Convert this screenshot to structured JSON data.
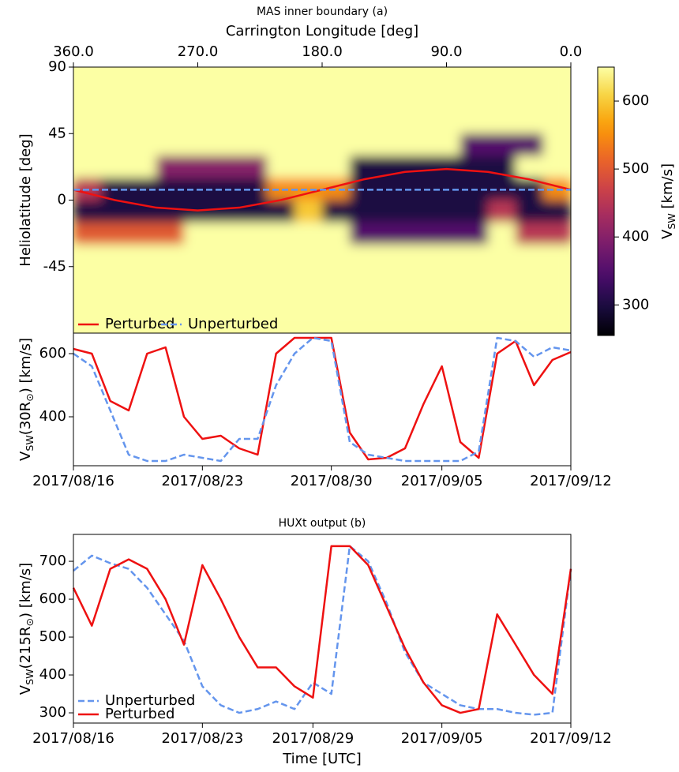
{
  "chart_data": [
    {
      "type": "heatmap",
      "title": "MAS inner boundary (a)",
      "xlabel": "Carrington Longitude [deg]",
      "xaxis": "top",
      "ylabel": "Heliolatitude [deg]",
      "xlim": [
        360,
        0
      ],
      "xticks": [
        {
          "value": 360,
          "label": "360.0"
        },
        {
          "value": 270,
          "label": "270.0"
        },
        {
          "value": 180,
          "label": "180.0"
        },
        {
          "value": 90,
          "label": "90.0"
        },
        {
          "value": 0,
          "label": "0.0"
        }
      ],
      "ylim": [
        -90,
        90
      ],
      "yticks": [
        -45,
        0,
        45,
        90
      ],
      "colormap": "inferno",
      "zlim": [
        255,
        650
      ],
      "zticks": [
        300,
        400,
        500,
        600
      ],
      "zlabel": [
        "V",
        "SW",
        " [km/s]"
      ],
      "z": [
        [
          650,
          650,
          650,
          650,
          650,
          650,
          650,
          650,
          650,
          650,
          650,
          650,
          650,
          650,
          650,
          650,
          650,
          650
        ],
        [
          650,
          650,
          650,
          650,
          650,
          650,
          650,
          650,
          650,
          650,
          650,
          650,
          650,
          650,
          650,
          650,
          650,
          650
        ],
        [
          650,
          650,
          650,
          650,
          650,
          650,
          650,
          650,
          650,
          650,
          650,
          650,
          650,
          650,
          650,
          650,
          650,
          650
        ],
        [
          650,
          650,
          650,
          650,
          650,
          650,
          650,
          650,
          650,
          650,
          650,
          650,
          650,
          650,
          350,
          350,
          350,
          650
        ],
        [
          650,
          650,
          650,
          400,
          400,
          400,
          400,
          650,
          650,
          650,
          300,
          300,
          300,
          300,
          300,
          300,
          650,
          650
        ],
        [
          450,
          300,
          300,
          300,
          300,
          300,
          300,
          550,
          550,
          550,
          300,
          300,
          300,
          300,
          300,
          300,
          300,
          550
        ],
        [
          300,
          300,
          300,
          300,
          300,
          300,
          300,
          300,
          600,
          300,
          300,
          300,
          300,
          300,
          300,
          450,
          300,
          300
        ],
        [
          500,
          500,
          500,
          500,
          650,
          650,
          650,
          650,
          650,
          650,
          350,
          350,
          350,
          350,
          350,
          650,
          450,
          450
        ],
        [
          650,
          650,
          650,
          650,
          650,
          650,
          650,
          650,
          650,
          650,
          650,
          650,
          650,
          650,
          650,
          650,
          650,
          650
        ],
        [
          650,
          650,
          650,
          650,
          650,
          650,
          650,
          650,
          650,
          650,
          650,
          650,
          650,
          650,
          650,
          650,
          650,
          650
        ],
        [
          650,
          650,
          650,
          650,
          650,
          650,
          650,
          650,
          650,
          650,
          650,
          650,
          650,
          650,
          650,
          650,
          650,
          650
        ],
        [
          650,
          650,
          650,
          650,
          650,
          650,
          650,
          650,
          650,
          650,
          650,
          650,
          650,
          650,
          650,
          650,
          650,
          650
        ]
      ],
      "legend": "lower left",
      "legend_ncol": 2,
      "series": [
        {
          "name": "Perturbed",
          "color": "#ee1111",
          "linestyle": "solid",
          "x": [
            360,
            330,
            300,
            270,
            240,
            210,
            180,
            150,
            120,
            90,
            60,
            30,
            0
          ],
          "values": [
            7,
            0,
            -5.1,
            -7,
            -5.1,
            0,
            7,
            14,
            19.1,
            21,
            19.1,
            14,
            7
          ]
        },
        {
          "name": "Unperturbed",
          "color": "#6495ed",
          "linestyle": "dashed",
          "x": [
            360,
            0
          ],
          "values": [
            7,
            7
          ]
        }
      ]
    },
    {
      "type": "line",
      "ylabel": [
        "V",
        "SW",
        "(30R",
        "⊙",
        ") [km/s]"
      ],
      "x": [
        "2017/08/16",
        "2017/08/17",
        "2017/08/18",
        "2017/08/19",
        "2017/08/20",
        "2017/08/21",
        "2017/08/22",
        "2017/08/23",
        "2017/08/24",
        "2017/08/25",
        "2017/08/26",
        "2017/08/27",
        "2017/08/28",
        "2017/08/29",
        "2017/08/30",
        "2017/08/31",
        "2017/09/01",
        "2017/09/02",
        "2017/09/03",
        "2017/09/04",
        "2017/09/05",
        "2017/09/06",
        "2017/09/07",
        "2017/09/08",
        "2017/09/09",
        "2017/09/10",
        "2017/09/11",
        "2017/09/12"
      ],
      "xlim": [
        "2017/08/16",
        "2017/09/12"
      ],
      "xticks": [
        "2017/08/16",
        "2017/08/23",
        "2017/08/30",
        "2017/09/05",
        "2017/09/12"
      ],
      "ylim": [
        245,
        665
      ],
      "yticks": [
        400,
        600
      ],
      "series": [
        {
          "name": "Perturbed",
          "color": "#ee1111",
          "linestyle": "solid",
          "values": [
            615,
            600,
            450,
            420,
            600,
            620,
            400,
            330,
            340,
            300,
            280,
            600,
            650,
            650,
            650,
            350,
            265,
            270,
            300,
            440,
            560,
            320,
            270,
            600,
            640,
            500,
            580,
            605
          ]
        },
        {
          "name": "Unperturbed",
          "color": "#6495ed",
          "linestyle": "dashed",
          "values": [
            600,
            560,
            420,
            280,
            260,
            260,
            280,
            270,
            260,
            330,
            330,
            500,
            600,
            650,
            640,
            320,
            280,
            270,
            260,
            260,
            260,
            260,
            290,
            650,
            640,
            590,
            620,
            610
          ]
        }
      ]
    },
    {
      "type": "line",
      "title": "HUXt output (b)",
      "xlabel": "Time [UTC]",
      "ylabel": [
        "V",
        "SW",
        "(215R",
        "⊙",
        ") [km/s]"
      ],
      "x": [
        "2017/08/16",
        "2017/08/17",
        "2017/08/18",
        "2017/08/19",
        "2017/08/20",
        "2017/08/21",
        "2017/08/22",
        "2017/08/23",
        "2017/08/24",
        "2017/08/25",
        "2017/08/26",
        "2017/08/27",
        "2017/08/28",
        "2017/08/29",
        "2017/08/30",
        "2017/08/31",
        "2017/09/01",
        "2017/09/02",
        "2017/09/03",
        "2017/09/04",
        "2017/09/05",
        "2017/09/06",
        "2017/09/07",
        "2017/09/08",
        "2017/09/09",
        "2017/09/10",
        "2017/09/11",
        "2017/09/12"
      ],
      "xlim": [
        "2017/08/16",
        "2017/09/12"
      ],
      "xticks": [
        "2017/08/16",
        "2017/08/23",
        "2017/08/29",
        "2017/09/05",
        "2017/09/12"
      ],
      "ylim": [
        273,
        771
      ],
      "yticks": [
        300,
        400,
        500,
        600,
        700
      ],
      "legend": "lower left",
      "legend_ncol": 1,
      "series": [
        {
          "name": "Unperturbed",
          "color": "#6495ed",
          "linestyle": "dashed",
          "values": [
            675,
            715,
            695,
            680,
            630,
            560,
            490,
            370,
            320,
            300,
            310,
            330,
            310,
            380,
            350,
            740,
            700,
            590,
            460,
            380,
            350,
            320,
            310,
            310,
            300,
            295,
            300,
            680
          ]
        },
        {
          "name": "Perturbed",
          "color": "#ee1111",
          "linestyle": "solid",
          "values": [
            630,
            530,
            680,
            705,
            680,
            600,
            480,
            690,
            600,
            500,
            420,
            420,
            370,
            340,
            740,
            740,
            690,
            580,
            470,
            380,
            320,
            300,
            310,
            560,
            480,
            400,
            350,
            680
          ]
        }
      ]
    }
  ]
}
